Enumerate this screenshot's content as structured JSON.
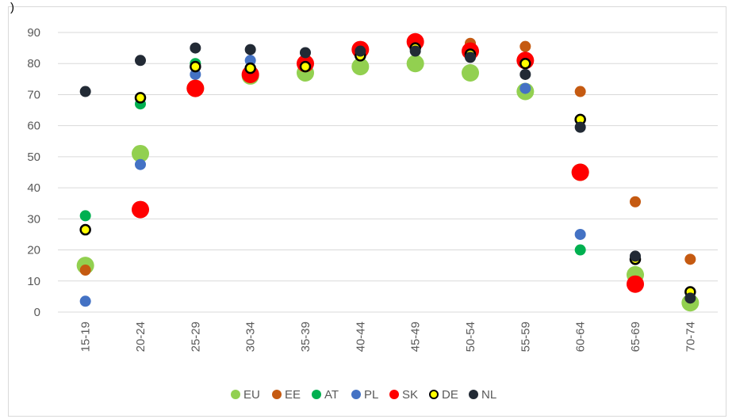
{
  "page": {
    "top_char": ")"
  },
  "chart_data": {
    "type": "scatter",
    "title": "",
    "xlabel": "",
    "ylabel": "",
    "ylim": [
      0,
      90
    ],
    "yticks": [
      0,
      10,
      20,
      30,
      40,
      50,
      60,
      70,
      80,
      90
    ],
    "grid": true,
    "legend_position": "bottom",
    "categories": [
      "15-19",
      "20-24",
      "25-29",
      "30-34",
      "35-39",
      "40-44",
      "45-49",
      "50-54",
      "55-59",
      "60-64",
      "65-69",
      "70-74"
    ],
    "series": [
      {
        "name": "EU",
        "color": "#92d050",
        "marker": "large-circle",
        "values": [
          15,
          51,
          72,
          76,
          77,
          79,
          80,
          77,
          71,
          45,
          12,
          3
        ]
      },
      {
        "name": "EE",
        "color": "#c55a11",
        "marker": "circle",
        "values": [
          13.5,
          null,
          null,
          null,
          null,
          null,
          null,
          86.5,
          85.5,
          71,
          35.5,
          17
        ]
      },
      {
        "name": "AT",
        "color": "#00b050",
        "marker": "circle",
        "values": [
          31,
          67,
          80,
          null,
          null,
          null,
          null,
          null,
          null,
          20,
          null,
          null
        ]
      },
      {
        "name": "PL",
        "color": "#4472c4",
        "marker": "circle",
        "values": [
          3.5,
          47.5,
          76.5,
          81,
          null,
          null,
          null,
          null,
          72,
          25,
          null,
          null
        ]
      },
      {
        "name": "SK",
        "color": "#ff0000",
        "marker": "large-circle",
        "values": [
          null,
          33,
          72,
          76.5,
          80,
          84.5,
          87,
          84,
          81,
          45,
          9,
          null
        ]
      },
      {
        "name": "DE",
        "color": "#ffff00",
        "edge_color": "#000000",
        "marker": "outlined-circle",
        "values": [
          26.5,
          69,
          79,
          78.5,
          79,
          82.5,
          85,
          83,
          80,
          62,
          17,
          6.5
        ]
      },
      {
        "name": "NL",
        "color": "#222a35",
        "marker": "circle",
        "values": [
          71,
          81,
          85,
          84.5,
          83.5,
          84,
          84,
          82,
          76.5,
          59.5,
          18,
          4.5
        ]
      }
    ]
  }
}
